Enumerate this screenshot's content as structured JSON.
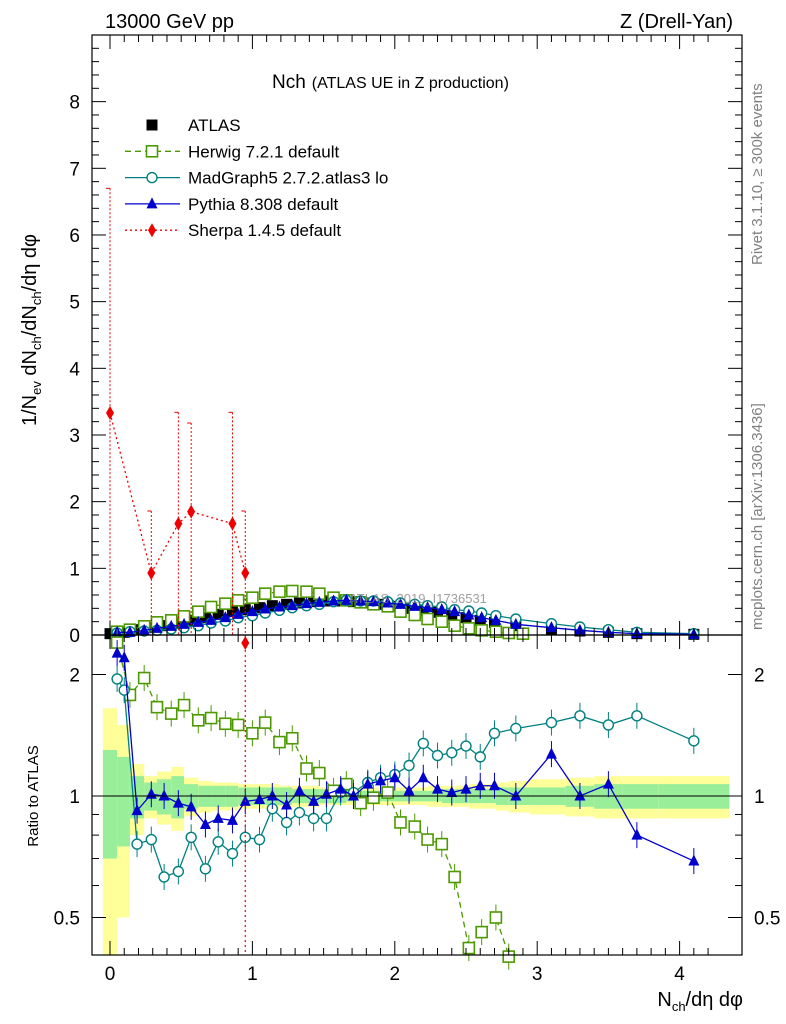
{
  "header": {
    "left": "13000 GeV pp",
    "right": "Z (Drell-Yan)"
  },
  "side_text": {
    "top": "Rivet 3.1.10, ≥ 300k events",
    "bottom": "mcplots.cern.ch [arXiv:1306.3436]"
  },
  "watermark": "ATLAS_2019_I1736531",
  "chart_data": [
    {
      "type": "line",
      "panel": "main",
      "title": "Nch",
      "subtitle": "(ATLAS UE in Z production)",
      "ylabel": "1/N_ev dN_ch/dN_ch/dη dφ",
      "xlabel": "N_ch/dη dφ",
      "xlim": [
        -0.15,
        4.4
      ],
      "ylim": [
        0,
        9
      ],
      "yticks": [
        "0",
        "1",
        "2",
        "3",
        "4",
        "5",
        "6",
        "7",
        "8"
      ],
      "legend_position": "top-left",
      "series": [
        {
          "name": "ATLAS",
          "color": "#000000",
          "marker": "square-filled",
          "line": "none",
          "x": [
            0.0,
            0.1,
            0.19,
            0.29,
            0.38,
            0.48,
            0.57,
            0.67,
            0.76,
            0.86,
            0.95,
            1.05,
            1.14,
            1.24,
            1.33,
            1.43,
            1.52,
            1.62,
            1.71,
            1.81,
            1.9,
            2.0,
            2.1,
            2.2,
            2.3,
            2.4,
            2.5,
            2.6,
            2.7,
            2.85,
            3.1,
            3.3,
            3.5,
            3.7,
            4.1
          ],
          "y": [
            0.02,
            0.04,
            0.08,
            0.11,
            0.14,
            0.18,
            0.22,
            0.26,
            0.31,
            0.35,
            0.38,
            0.41,
            0.44,
            0.46,
            0.48,
            0.5,
            0.51,
            0.51,
            0.5,
            0.48,
            0.46,
            0.43,
            0.4,
            0.37,
            0.34,
            0.3,
            0.26,
            0.22,
            0.19,
            0.14,
            0.09,
            0.06,
            0.04,
            0.02,
            0.01
          ]
        },
        {
          "name": "Herwig 7.2.1 default",
          "color": "#4d9900",
          "marker": "square-open",
          "line": "dashed",
          "x": [
            0.05,
            0.14,
            0.24,
            0.33,
            0.43,
            0.52,
            0.62,
            0.71,
            0.81,
            0.9,
            1.0,
            1.09,
            1.19,
            1.28,
            1.38,
            1.47,
            1.57,
            1.66,
            1.76,
            1.85,
            1.95,
            2.04,
            2.14,
            2.23,
            2.33,
            2.42,
            2.52,
            2.61,
            2.71,
            2.8,
            2.9
          ],
          "y": [
            0.05,
            0.08,
            0.13,
            0.19,
            0.22,
            0.28,
            0.35,
            0.42,
            0.47,
            0.52,
            0.56,
            0.62,
            0.65,
            0.66,
            0.65,
            0.62,
            0.56,
            0.52,
            0.49,
            0.46,
            0.43,
            0.35,
            0.3,
            0.24,
            0.2,
            0.14,
            0.1,
            0.07,
            0.05,
            0.03,
            0.02
          ]
        },
        {
          "name": "MadGraph5 2.7.2.atlas3 lo",
          "color": "#008080",
          "marker": "circle-open",
          "line": "solid",
          "x": [
            0.05,
            0.14,
            0.24,
            0.33,
            0.43,
            0.52,
            0.62,
            0.71,
            0.81,
            0.9,
            1.0,
            1.09,
            1.19,
            1.28,
            1.38,
            1.47,
            1.57,
            1.66,
            1.76,
            1.85,
            1.95,
            2.04,
            2.14,
            2.23,
            2.33,
            2.42,
            2.52,
            2.61,
            2.71,
            2.85,
            3.1,
            3.3,
            3.5,
            3.7,
            4.1
          ],
          "y": [
            0.03,
            0.05,
            0.06,
            0.07,
            0.09,
            0.11,
            0.14,
            0.18,
            0.21,
            0.26,
            0.29,
            0.33,
            0.37,
            0.41,
            0.44,
            0.46,
            0.5,
            0.52,
            0.51,
            0.51,
            0.5,
            0.48,
            0.46,
            0.44,
            0.42,
            0.38,
            0.36,
            0.33,
            0.29,
            0.24,
            0.17,
            0.12,
            0.08,
            0.04,
            0.02
          ]
        },
        {
          "name": "Pythia 8.308 default",
          "color": "#0000cc",
          "marker": "triangle-filled",
          "line": "solid",
          "x": [
            0.05,
            0.14,
            0.24,
            0.33,
            0.43,
            0.52,
            0.62,
            0.71,
            0.81,
            0.9,
            1.0,
            1.09,
            1.19,
            1.28,
            1.38,
            1.47,
            1.57,
            1.66,
            1.76,
            1.85,
            1.95,
            2.04,
            2.14,
            2.23,
            2.33,
            2.42,
            2.52,
            2.61,
            2.71,
            2.85,
            3.1,
            3.3,
            3.5,
            3.7,
            4.1
          ],
          "y": [
            0.04,
            0.04,
            0.07,
            0.1,
            0.13,
            0.16,
            0.19,
            0.22,
            0.26,
            0.31,
            0.35,
            0.39,
            0.42,
            0.44,
            0.47,
            0.49,
            0.51,
            0.52,
            0.51,
            0.5,
            0.48,
            0.46,
            0.43,
            0.41,
            0.38,
            0.35,
            0.3,
            0.26,
            0.22,
            0.16,
            0.11,
            0.07,
            0.04,
            0.02,
            0.01
          ]
        },
        {
          "name": "Sherpa 1.4.5 default",
          "color": "#ee0000",
          "marker": "diamond-filled",
          "line": "dotted",
          "x": [
            0.0,
            0.29,
            0.48,
            0.57,
            0.86,
            0.95
          ],
          "y": [
            3.33,
            0.93,
            1.67,
            1.85,
            1.67,
            0.93
          ],
          "err_up": [
            3.37,
            0.93,
            1.67,
            1.33,
            1.67,
            0.93
          ],
          "err_down": [
            3.33,
            0.93,
            1.67,
            1.85,
            1.67,
            0.93
          ]
        }
      ]
    },
    {
      "type": "line",
      "panel": "ratio",
      "ylabel": "Ratio to ATLAS",
      "xlabel": "N_ch/dη dφ",
      "xlim": [
        -0.15,
        4.4
      ],
      "ylim": [
        0.35,
        2.35
      ],
      "yticks": [
        "0.5",
        "1",
        "2"
      ],
      "xticks": [
        "0",
        "1",
        "2",
        "3",
        "4"
      ],
      "reference_line": 1,
      "bands": {
        "x_edges": [
          -0.05,
          0.05,
          0.14,
          0.24,
          0.33,
          0.43,
          0.52,
          0.62,
          0.71,
          0.81,
          0.9,
          1.0,
          1.09,
          1.19,
          1.28,
          1.38,
          1.47,
          1.57,
          1.66,
          1.76,
          1.85,
          1.95,
          2.04,
          2.14,
          2.23,
          2.33,
          2.42,
          2.52,
          2.61,
          2.71,
          2.8,
          2.95,
          3.2,
          3.4,
          3.6,
          3.85,
          4.35
        ],
        "inner_halfwidth": [
          0.3,
          0.25,
          0.12,
          0.08,
          0.1,
          0.12,
          0.07,
          0.06,
          0.06,
          0.06,
          0.05,
          0.05,
          0.05,
          0.05,
          0.04,
          0.04,
          0.04,
          0.04,
          0.03,
          0.03,
          0.03,
          0.03,
          0.03,
          0.03,
          0.03,
          0.04,
          0.04,
          0.04,
          0.04,
          0.05,
          0.05,
          0.05,
          0.06,
          0.07,
          0.07,
          0.07
        ],
        "outer_halfwidth": [
          0.65,
          0.5,
          0.2,
          0.12,
          0.15,
          0.18,
          0.11,
          0.09,
          0.08,
          0.08,
          0.07,
          0.07,
          0.07,
          0.06,
          0.06,
          0.06,
          0.05,
          0.05,
          0.05,
          0.05,
          0.05,
          0.05,
          0.05,
          0.05,
          0.06,
          0.06,
          0.06,
          0.07,
          0.07,
          0.08,
          0.09,
          0.1,
          0.11,
          0.12,
          0.12,
          0.12
        ]
      },
      "series": [
        {
          "name": "Herwig 7.2.1 default",
          "color": "#4d9900",
          "marker": "square-open",
          "line": "dashed",
          "x": [
            0.05,
            0.14,
            0.24,
            0.33,
            0.43,
            0.52,
            0.62,
            0.71,
            0.81,
            0.9,
            1.0,
            1.09,
            1.19,
            1.28,
            1.38,
            1.47,
            1.57,
            1.66,
            1.76,
            1.85,
            1.95,
            2.04,
            2.14,
            2.23,
            2.33,
            2.42,
            2.52,
            2.61,
            2.71,
            2.8,
            2.9
          ],
          "y": [
            2.4,
            1.78,
            1.96,
            1.66,
            1.6,
            1.68,
            1.54,
            1.56,
            1.51,
            1.5,
            1.43,
            1.52,
            1.36,
            1.39,
            1.17,
            1.14,
            1.03,
            1.07,
            0.96,
            0.99,
            1.02,
            0.86,
            0.84,
            0.78,
            0.76,
            0.63,
            0.42,
            0.46,
            0.5,
            0.4,
            0.29
          ]
        },
        {
          "name": "MadGraph5 2.7.2.atlas3 lo",
          "color": "#008080",
          "marker": "circle-open",
          "line": "solid",
          "x": [
            0.05,
            0.1,
            0.19,
            0.29,
            0.38,
            0.48,
            0.57,
            0.67,
            0.76,
            0.86,
            0.95,
            1.05,
            1.14,
            1.24,
            1.33,
            1.43,
            1.52,
            1.62,
            1.71,
            1.81,
            1.9,
            2.0,
            2.1,
            2.2,
            2.3,
            2.4,
            2.5,
            2.6,
            2.7,
            2.85,
            3.1,
            3.3,
            3.5,
            3.7,
            4.1
          ],
          "y": [
            1.95,
            1.83,
            0.76,
            0.78,
            0.63,
            0.65,
            0.79,
            0.66,
            0.77,
            0.72,
            0.79,
            0.78,
            0.93,
            0.86,
            0.91,
            0.88,
            0.88,
            1.02,
            1.02,
            1.08,
            1.11,
            1.13,
            1.19,
            1.35,
            1.26,
            1.28,
            1.33,
            1.25,
            1.43,
            1.47,
            1.52,
            1.58,
            1.5,
            1.58,
            1.37
          ]
        },
        {
          "name": "Pythia 8.308 default",
          "color": "#0000cc",
          "marker": "triangle-filled",
          "line": "solid",
          "x": [
            0.05,
            0.1,
            0.19,
            0.29,
            0.38,
            0.48,
            0.57,
            0.67,
            0.76,
            0.86,
            0.95,
            1.05,
            1.14,
            1.24,
            1.33,
            1.43,
            1.52,
            1.62,
            1.71,
            1.81,
            1.9,
            2.0,
            2.1,
            2.2,
            2.3,
            2.4,
            2.5,
            2.6,
            2.7,
            2.85,
            3.1,
            3.3,
            3.5,
            3.7,
            4.1
          ],
          "y": [
            2.26,
            2.2,
            0.92,
            1.01,
            1.0,
            0.96,
            0.94,
            0.85,
            0.88,
            0.87,
            0.97,
            0.98,
            1.0,
            0.95,
            1.03,
            0.97,
            1.01,
            1.04,
            1.0,
            1.07,
            1.09,
            1.11,
            1.03,
            1.11,
            1.04,
            1.02,
            1.04,
            1.06,
            1.06,
            1.0,
            1.27,
            1.0,
            1.07,
            0.8,
            0.69
          ]
        },
        {
          "name": "Sherpa 1.4.5 default",
          "color": "#ee0000",
          "marker": "diamond-filled",
          "line": "dotted",
          "x": [
            0.95
          ],
          "y": [
            2.35
          ],
          "note": "vertical dotted line at x=0.95 spanning the panel"
        }
      ]
    }
  ]
}
